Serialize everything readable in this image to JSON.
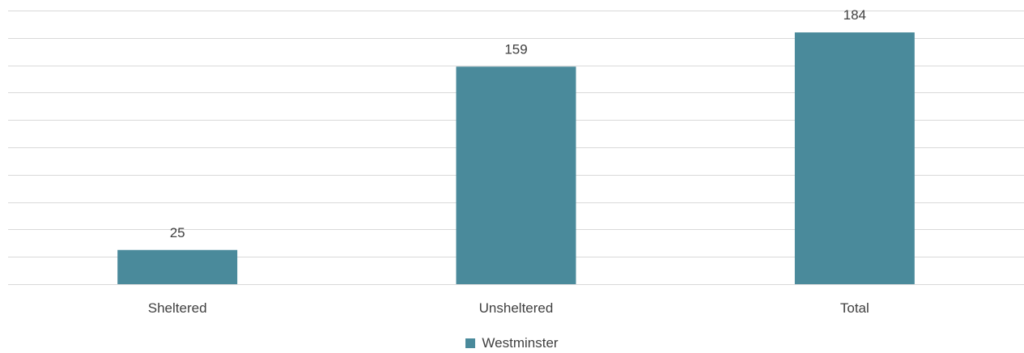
{
  "chart_data": {
    "type": "bar",
    "title": "",
    "xlabel": "",
    "ylabel": "",
    "categories": [
      "Sheltered",
      "Unsheltered",
      "Total"
    ],
    "series": [
      {
        "name": "Westminster",
        "values": [
          25,
          159,
          184
        ],
        "color": "#4a8a9b"
      }
    ],
    "ylim": [
      0,
      200
    ],
    "grid": true,
    "gridlines": 11,
    "show_y_tick_labels": false,
    "data_labels": true,
    "legend_position": "bottom"
  }
}
